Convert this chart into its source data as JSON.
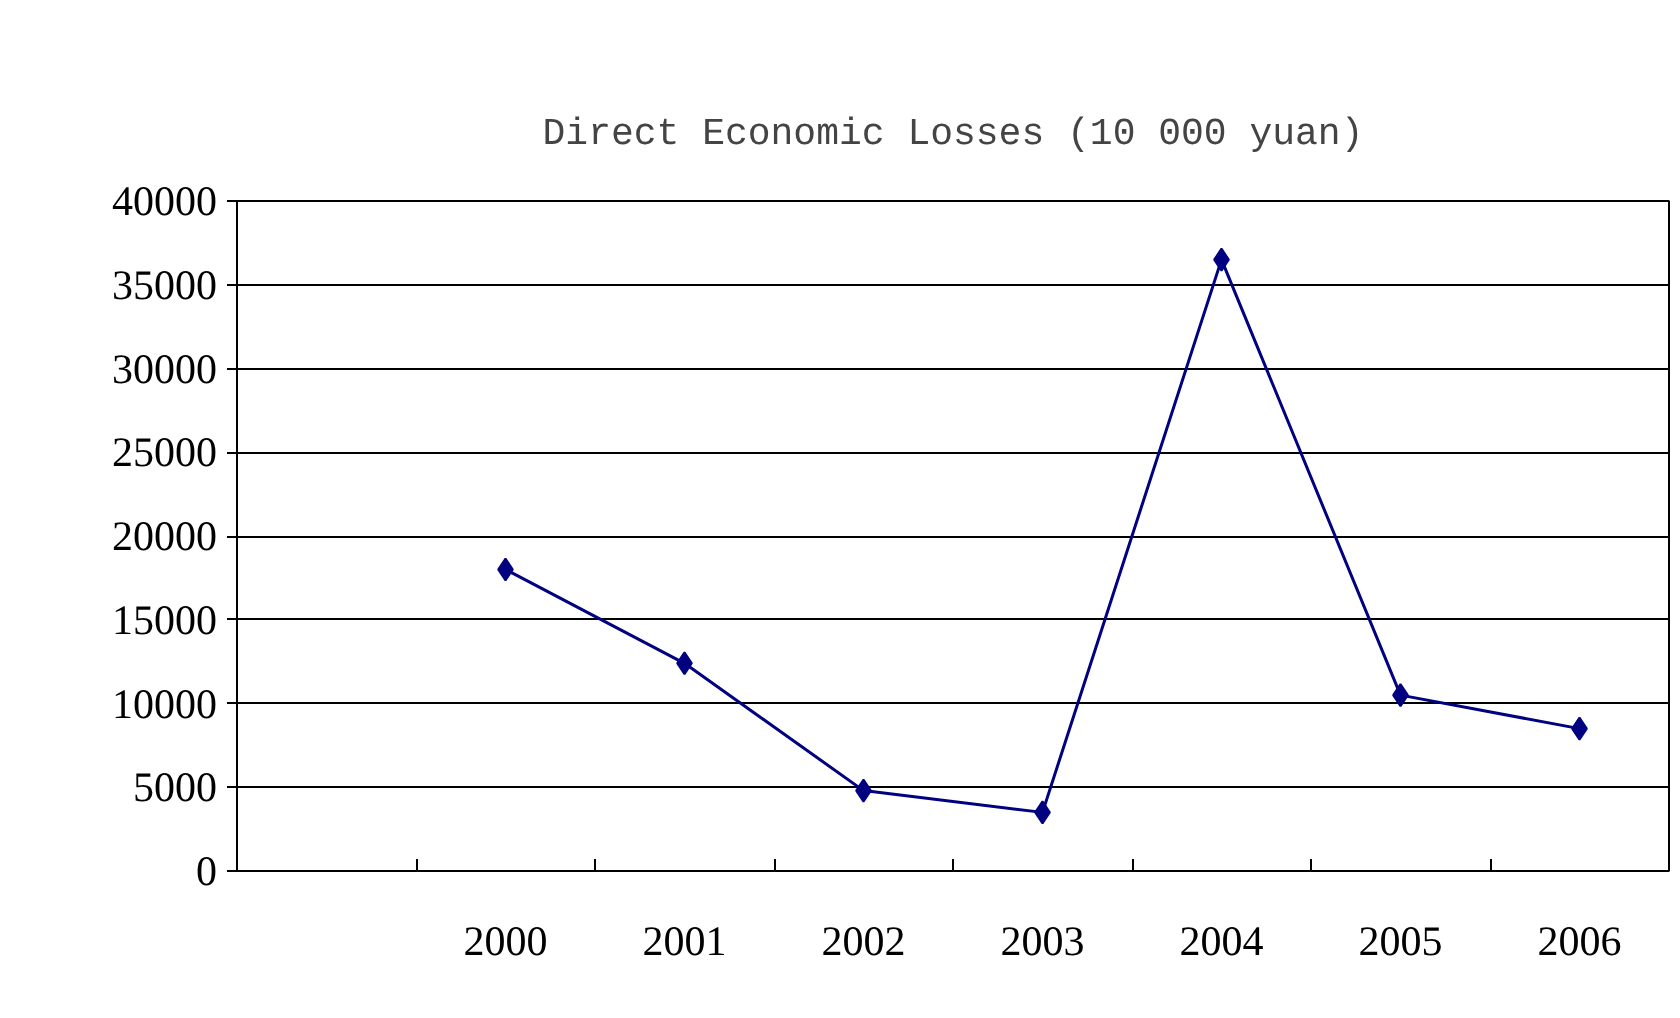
{
  "chart_data": {
    "type": "line",
    "title": "Direct Economic Losses (10 000 yuan)",
    "categories": [
      null,
      "2000",
      "2001",
      "2002",
      "2003",
      "2004",
      "2005",
      "2006"
    ],
    "series": [
      {
        "color": "#000080",
        "values": [
          null,
          18000,
          12400,
          4800,
          3500,
          36500,
          10500,
          8500
        ]
      }
    ],
    "ylim": [
      0,
      40000
    ],
    "yticks": [
      0,
      5000,
      10000,
      15000,
      20000,
      25000,
      30000,
      35000,
      40000
    ],
    "grid": "y",
    "marker": "diamond",
    "line_style": "solid"
  }
}
